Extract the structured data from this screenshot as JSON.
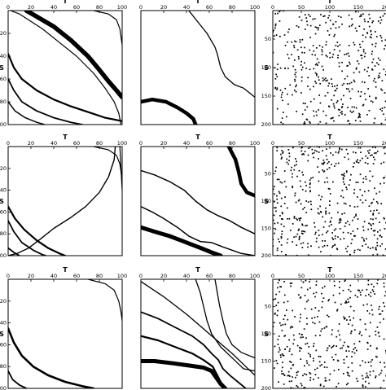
{
  "figure": {
    "description_free": true
  },
  "chart_data": [
    {
      "type": "heatmap",
      "row": 1,
      "col": 1,
      "xlabel": "T",
      "ylabel": "S",
      "xlim": [
        0,
        100
      ],
      "ylim": [
        0,
        100
      ],
      "xticks": [
        0,
        20,
        40,
        60,
        80,
        100
      ],
      "yticks": [
        20,
        40,
        60,
        80,
        100
      ],
      "grid": false,
      "curves": [
        {
          "w": 1.2,
          "pts": [
            [
              2,
              0
            ],
            [
              10,
              3
            ],
            [
              30,
              16
            ],
            [
              45,
              28
            ],
            [
              60,
              40
            ],
            [
              75,
              55
            ],
            [
              85,
              68
            ],
            [
              93,
              80
            ],
            [
              97,
              90
            ],
            [
              99,
              100
            ]
          ]
        },
        {
          "w": 5.5,
          "pts": [
            [
              16,
              0
            ],
            [
              40,
              14
            ],
            [
              55,
              26
            ],
            [
              70,
              40
            ],
            [
              80,
              52
            ],
            [
              88,
              62
            ],
            [
              95,
              70
            ],
            [
              100,
              76
            ]
          ]
        },
        {
          "w": 1.2,
          "pts": [
            [
              75,
              0
            ],
            [
              88,
              3
            ],
            [
              95,
              8
            ],
            [
              98,
              16
            ],
            [
              100,
              30
            ]
          ]
        },
        {
          "w": 2.2,
          "pts": [
            [
              0,
              38
            ],
            [
              5,
              50
            ],
            [
              12,
              60
            ],
            [
              25,
              70
            ],
            [
              40,
              78
            ],
            [
              55,
              84
            ],
            [
              70,
              89
            ],
            [
              85,
              94
            ],
            [
              100,
              97
            ]
          ]
        },
        {
          "w": 1.8,
          "pts": [
            [
              0,
              60
            ],
            [
              5,
              70
            ],
            [
              12,
              80
            ],
            [
              25,
              88
            ],
            [
              40,
              94
            ],
            [
              55,
              98
            ],
            [
              65,
              100
            ]
          ]
        },
        {
          "w": 1.5,
          "pts": [
            [
              0,
              80
            ],
            [
              6,
              88
            ],
            [
              15,
              94
            ],
            [
              25,
              98
            ],
            [
              32,
              100
            ]
          ]
        }
      ]
    },
    {
      "type": "heatmap",
      "row": 1,
      "col": 2,
      "xlabel": "T",
      "ylabel": "",
      "xlim": [
        0,
        100
      ],
      "ylim": [
        0,
        100
      ],
      "xticks": [
        0,
        20,
        40,
        60,
        80,
        100
      ],
      "yticks": [],
      "grid": false,
      "curves": [
        {
          "w": 1.3,
          "pts": [
            [
              42,
              0
            ],
            [
              50,
              10
            ],
            [
              58,
              20
            ],
            [
              65,
              32
            ],
            [
              67,
              38
            ],
            [
              70,
              50
            ],
            [
              74,
              58
            ],
            [
              82,
              65
            ],
            [
              90,
              68
            ],
            [
              95,
              72
            ],
            [
              100,
              76
            ]
          ]
        },
        {
          "w": 4.5,
          "pts": [
            [
              0,
              80
            ],
            [
              10,
              78
            ],
            [
              22,
              80
            ],
            [
              32,
              85
            ],
            [
              40,
              90
            ],
            [
              46,
              95
            ],
            [
              48,
              100
            ]
          ]
        }
      ]
    },
    {
      "type": "scatter",
      "row": 1,
      "col": 3,
      "xlabel": "T",
      "ylabel": "S",
      "xlim": [
        0,
        200
      ],
      "ylim": [
        0,
        200
      ],
      "xticks": [
        0,
        50,
        100,
        150,
        200
      ],
      "yticks": [
        50,
        100,
        150,
        200
      ],
      "grid": false,
      "points": 420,
      "seed": 11
    },
    {
      "type": "heatmap",
      "row": 2,
      "col": 1,
      "xlabel": "T",
      "ylabel": "S",
      "xlim": [
        0,
        100
      ],
      "ylim": [
        0,
        100
      ],
      "xticks": [
        0,
        20,
        40,
        60,
        80,
        100
      ],
      "yticks": [
        20,
        40,
        60,
        80,
        100
      ],
      "grid": false,
      "curves": [
        {
          "w": 1.2,
          "pts": [
            [
              75,
              0
            ],
            [
              88,
              3
            ],
            [
              95,
              8
            ],
            [
              98,
              16
            ],
            [
              100,
              30
            ]
          ]
        },
        {
          "w": 1.2,
          "pts": [
            [
              98,
              0
            ],
            [
              100,
              40
            ]
          ]
        },
        {
          "w": 1.4,
          "pts": [
            [
              94,
              0
            ],
            [
              93,
              12
            ],
            [
              88,
              28
            ],
            [
              80,
              42
            ],
            [
              68,
              55
            ],
            [
              55,
              65
            ],
            [
              40,
              75
            ],
            [
              28,
              85
            ],
            [
              18,
              93
            ],
            [
              8,
              98
            ],
            [
              0,
              100
            ]
          ]
        },
        {
          "w": 2.2,
          "pts": [
            [
              0,
              55
            ],
            [
              6,
              66
            ],
            [
              14,
              76
            ],
            [
              25,
              86
            ],
            [
              35,
              93
            ],
            [
              45,
              98
            ],
            [
              50,
              100
            ]
          ]
        },
        {
          "w": 1.8,
          "pts": [
            [
              0,
              68
            ],
            [
              5,
              78
            ],
            [
              12,
              88
            ],
            [
              22,
              95
            ],
            [
              30,
              99
            ],
            [
              33,
              100
            ]
          ]
        },
        {
          "w": 1.8,
          "pts": [
            [
              0,
              93
            ],
            [
              5,
              97
            ],
            [
              10,
              100
            ]
          ]
        }
      ]
    },
    {
      "type": "heatmap",
      "row": 2,
      "col": 2,
      "xlabel": "T",
      "ylabel": "",
      "xlim": [
        0,
        100
      ],
      "ylim": [
        0,
        100
      ],
      "xticks": [
        0,
        20,
        40,
        60,
        80,
        100
      ],
      "yticks": [],
      "grid": false,
      "curves": [
        {
          "w": 4.5,
          "pts": [
            [
              77,
              0
            ],
            [
              83,
              12
            ],
            [
              86,
              24
            ],
            [
              88,
              34
            ],
            [
              93,
              42
            ],
            [
              100,
              45
            ]
          ]
        },
        {
          "w": 1.5,
          "pts": [
            [
              0,
              22
            ],
            [
              12,
              26
            ],
            [
              25,
              32
            ],
            [
              38,
              40
            ],
            [
              48,
              50
            ],
            [
              58,
              58
            ],
            [
              67,
              63
            ],
            [
              78,
              68
            ],
            [
              88,
              74
            ],
            [
              100,
              80
            ]
          ]
        },
        {
          "w": 1.5,
          "pts": [
            [
              0,
              55
            ],
            [
              10,
              60
            ],
            [
              20,
              66
            ],
            [
              32,
              74
            ],
            [
              42,
              82
            ],
            [
              52,
              87
            ],
            [
              62,
              88
            ],
            [
              72,
              92
            ],
            [
              80,
              95
            ],
            [
              88,
              98
            ],
            [
              100,
              100
            ]
          ]
        },
        {
          "w": 5.0,
          "pts": [
            [
              0,
              74
            ],
            [
              12,
              78
            ],
            [
              25,
              82
            ],
            [
              35,
              86
            ],
            [
              45,
              90
            ],
            [
              55,
              94
            ],
            [
              62,
              97
            ],
            [
              70,
              100
            ]
          ]
        }
      ]
    },
    {
      "type": "scatter",
      "row": 2,
      "col": 3,
      "xlabel": "T",
      "ylabel": "S",
      "xlim": [
        0,
        200
      ],
      "ylim": [
        0,
        200
      ],
      "xticks": [
        0,
        50,
        100,
        150,
        200
      ],
      "yticks": [
        50,
        100,
        150,
        200
      ],
      "grid": false,
      "points": 460,
      "seed": 23
    },
    {
      "type": "heatmap",
      "row": 3,
      "col": 1,
      "xlabel": "T",
      "ylabel": "S",
      "xlim": [
        0,
        100
      ],
      "ylim": [
        0,
        100
      ],
      "xticks": [
        0,
        20,
        40,
        60,
        80,
        100
      ],
      "yticks": [
        20,
        40,
        60,
        80,
        100
      ],
      "grid": false,
      "curves": [
        {
          "w": 1.2,
          "pts": [
            [
              70,
              0
            ],
            [
              85,
              4
            ],
            [
              93,
              10
            ],
            [
              97,
              20
            ],
            [
              99,
              30
            ],
            [
              100,
              38
            ]
          ]
        },
        {
          "w": 2.6,
          "pts": [
            [
              0,
              45
            ],
            [
              5,
              58
            ],
            [
              12,
              70
            ],
            [
              22,
              80
            ],
            [
              35,
              88
            ],
            [
              50,
              94
            ],
            [
              65,
              98
            ],
            [
              75,
              100
            ]
          ]
        },
        {
          "w": 1.8,
          "pts": [
            [
              0,
              84
            ],
            [
              4,
              92
            ],
            [
              10,
              97
            ],
            [
              16,
              100
            ]
          ]
        }
      ]
    },
    {
      "type": "heatmap",
      "row": 3,
      "col": 2,
      "xlabel": "T",
      "ylabel": "",
      "xlim": [
        0,
        100
      ],
      "ylim": [
        0,
        100
      ],
      "xticks": [
        0,
        20,
        40,
        60,
        80,
        100
      ],
      "yticks": [],
      "grid": false,
      "curves": [
        {
          "w": 1.3,
          "pts": [
            [
              0,
              2
            ],
            [
              20,
              16
            ],
            [
              40,
              32
            ],
            [
              60,
              50
            ],
            [
              80,
              68
            ],
            [
              92,
              80
            ],
            [
              100,
              88
            ]
          ]
        },
        {
          "w": 1.3,
          "pts": [
            [
              65,
              0
            ],
            [
              67,
              12
            ],
            [
              69,
              24
            ],
            [
              72,
              38
            ],
            [
              75,
              50
            ],
            [
              80,
              60
            ],
            [
              88,
              67
            ],
            [
              95,
              70
            ],
            [
              100,
              72
            ]
          ]
        },
        {
          "w": 1.3,
          "pts": [
            [
              48,
              0
            ],
            [
              52,
              12
            ],
            [
              55,
              25
            ],
            [
              58,
              38
            ],
            [
              62,
              50
            ],
            [
              70,
              62
            ],
            [
              78,
              70
            ],
            [
              84,
              76
            ],
            [
              90,
              82
            ],
            [
              100,
              84
            ]
          ]
        },
        {
          "w": 1.8,
          "pts": [
            [
              0,
              30
            ],
            [
              15,
              36
            ],
            [
              30,
              44
            ],
            [
              45,
              52
            ],
            [
              55,
              60
            ],
            [
              62,
              68
            ],
            [
              68,
              74
            ],
            [
              72,
              82
            ],
            [
              78,
              88
            ],
            [
              85,
              94
            ],
            [
              92,
              100
            ]
          ]
        },
        {
          "w": 2.2,
          "pts": [
            [
              0,
              52
            ],
            [
              15,
              56
            ],
            [
              30,
              62
            ],
            [
              45,
              68
            ],
            [
              55,
              74
            ],
            [
              63,
              80
            ],
            [
              67,
              88
            ],
            [
              70,
              94
            ],
            [
              74,
              100
            ]
          ]
        },
        {
          "w": 5.0,
          "pts": [
            [
              0,
              75
            ],
            [
              12,
              75
            ],
            [
              28,
              77
            ],
            [
              42,
              79
            ],
            [
              55,
              81
            ],
            [
              62,
              84
            ],
            [
              66,
              90
            ],
            [
              70,
              96
            ],
            [
              74,
              100
            ]
          ]
        }
      ]
    },
    {
      "type": "scatter",
      "row": 3,
      "col": 3,
      "xlabel": "T",
      "ylabel": "S",
      "xlim": [
        0,
        200
      ],
      "ylim": [
        0,
        200
      ],
      "xticks": [
        0,
        50,
        100,
        150,
        200
      ],
      "yticks": [
        50,
        100,
        150,
        200
      ],
      "grid": false,
      "points": 400,
      "seed": 37
    }
  ]
}
